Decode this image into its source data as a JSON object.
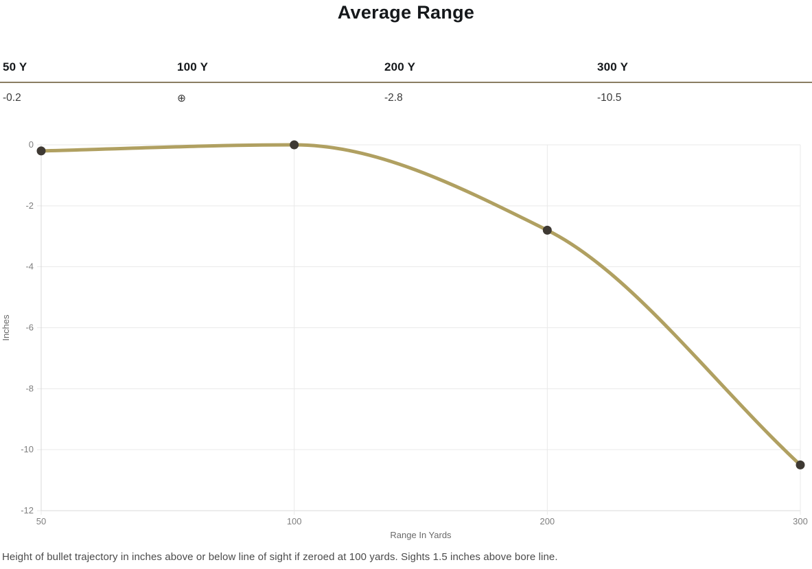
{
  "page": {
    "title": "Average Range",
    "footnote": "Height of bullet trajectory in inches above or below line of sight if zeroed at 100 yards. Sights 1.5 inches above bore line."
  },
  "table": {
    "columns": [
      {
        "label": "50 Y",
        "value": "-0.2"
      },
      {
        "label": "100 Y",
        "value": "⊕"
      },
      {
        "label": "200 Y",
        "value": "-2.8"
      },
      {
        "label": "300 Y",
        "value": "-10.5"
      }
    ]
  },
  "chart_data": {
    "type": "line",
    "categories": [
      "50",
      "100",
      "200",
      "300"
    ],
    "series": [
      {
        "name": "Bullet trajectory",
        "values": [
          -0.2,
          0,
          -2.8,
          -10.5
        ]
      }
    ],
    "title": "",
    "xlabel": "Range In Yards",
    "ylabel": "Inches",
    "ylim": [
      -12,
      0
    ],
    "ytick_step": 2,
    "grid": true,
    "legend": false,
    "interpolation": "monotone",
    "line_color": "#b0a061",
    "point_color": "#3e3933",
    "grid_color": "#e9e9e9",
    "axis_color": "#d8d8d8",
    "tick_color": "#7e7e7e"
  }
}
